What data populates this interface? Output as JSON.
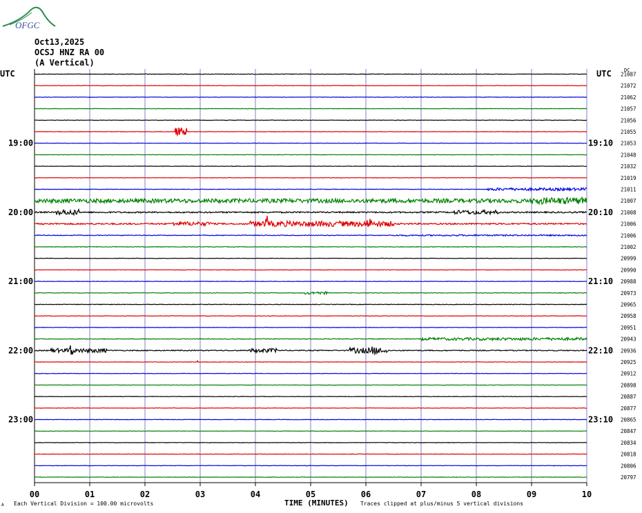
{
  "header": {
    "logo_text": "OFGC",
    "date": "Oct13,2025",
    "station": "OCSJ HNZ RA 00",
    "component": "(A Vertical)"
  },
  "axis_labels": {
    "utc_left": "UTC",
    "utc_right": "UTC",
    "dc_label": "DC",
    "x_title": "TIME (MINUTES)"
  },
  "footer": {
    "mark": "A",
    "scale_note": "Each Vertical Division =  100.00 microvolts",
    "clip_note": "Traces clipped at plus/minus 5 vertical divisions"
  },
  "colors": {
    "black": "#000000",
    "red": "#e00000",
    "blue": "#0000e0",
    "green": "#008000",
    "grid": "#8080c0",
    "logo": "#2a8a4a",
    "logo_text": "#3050a0"
  },
  "chart_data": {
    "type": "line",
    "xlim": [
      0,
      10
    ],
    "x_ticks": [
      "00",
      "01",
      "02",
      "03",
      "04",
      "05",
      "06",
      "07",
      "08",
      "09",
      "10"
    ],
    "color_cycle": [
      "black",
      "red",
      "blue",
      "green"
    ],
    "traces": 36,
    "minutes_per_trace": 10,
    "time_labels_left": [
      {
        "trace": 6,
        "label": "19:00"
      },
      {
        "trace": 12,
        "label": "20:00"
      },
      {
        "trace": 18,
        "label": "21:00"
      },
      {
        "trace": 24,
        "label": "22:00"
      },
      {
        "trace": 30,
        "label": "23:00"
      }
    ],
    "time_labels_right": [
      {
        "trace": 6,
        "label": "19:10"
      },
      {
        "trace": 12,
        "label": "20:10"
      },
      {
        "trace": 18,
        "label": "21:10"
      },
      {
        "trace": 24,
        "label": "22:10"
      },
      {
        "trace": 30,
        "label": "23:10"
      }
    ],
    "dc_values": [
      "21087",
      "21072",
      "21062",
      "21057",
      "21056",
      "21055",
      "21053",
      "21048",
      "21032",
      "21019",
      "21011",
      "21007",
      "21008",
      "21006",
      "21006",
      "21002",
      "20999",
      "20990",
      "20988",
      "20973",
      "20965",
      "20958",
      "20951",
      "20943",
      "20936",
      "20925",
      "20912",
      "20898",
      "20887",
      "20877",
      "20865",
      "20847",
      "20834",
      "20818",
      "20806",
      "20797"
    ],
    "noise": [
      0.35,
      0.3,
      0.3,
      0.3,
      0.3,
      0.3,
      0.3,
      0.3,
      0.3,
      0.3,
      0.35,
      1.2,
      1.0,
      1.1,
      0.5,
      0.4,
      0.3,
      0.3,
      0.3,
      0.4,
      0.4,
      0.35,
      0.3,
      0.5,
      0.7,
      0.3,
      0.3,
      0.3,
      0.3,
      0.3,
      0.3,
      0.3,
      0.3,
      0.3,
      0.3,
      0.3
    ],
    "events": [
      {
        "trace": 5,
        "start": 2.55,
        "end": 2.75,
        "amp": 6
      },
      {
        "trace": 5,
        "start": 2.62,
        "end": 2.66,
        "amp": 12
      },
      {
        "trace": 10,
        "start": 8.2,
        "end": 10,
        "amp": 2
      },
      {
        "trace": 11,
        "start": 0,
        "end": 10,
        "amp": 3
      },
      {
        "trace": 11,
        "start": 9.0,
        "end": 10,
        "amp": 5
      },
      {
        "trace": 12,
        "start": 0.4,
        "end": 0.8,
        "amp": 4
      },
      {
        "trace": 12,
        "start": 7.6,
        "end": 8.4,
        "amp": 3
      },
      {
        "trace": 13,
        "start": 2.5,
        "end": 3.2,
        "amp": 3
      },
      {
        "trace": 13,
        "start": 3.9,
        "end": 6.5,
        "amp": 4
      },
      {
        "trace": 13,
        "start": 4.18,
        "end": 4.24,
        "amp": 12
      },
      {
        "trace": 13,
        "start": 6.0,
        "end": 6.1,
        "amp": 8
      },
      {
        "trace": 14,
        "start": 6.5,
        "end": 10,
        "amp": 1
      },
      {
        "trace": 19,
        "start": 4.9,
        "end": 5.3,
        "amp": 2
      },
      {
        "trace": 23,
        "start": 7.0,
        "end": 10,
        "amp": 2
      },
      {
        "trace": 24,
        "start": 0.3,
        "end": 1.3,
        "amp": 3
      },
      {
        "trace": 24,
        "start": 0.65,
        "end": 0.69,
        "amp": 14
      },
      {
        "trace": 24,
        "start": 3.9,
        "end": 4.4,
        "amp": 3
      },
      {
        "trace": 24,
        "start": 5.7,
        "end": 6.4,
        "amp": 4
      },
      {
        "trace": 24,
        "start": 6.1,
        "end": 6.2,
        "amp": 6
      },
      {
        "trace": 25,
        "start": 2.92,
        "end": 2.96,
        "amp": 4
      }
    ]
  }
}
